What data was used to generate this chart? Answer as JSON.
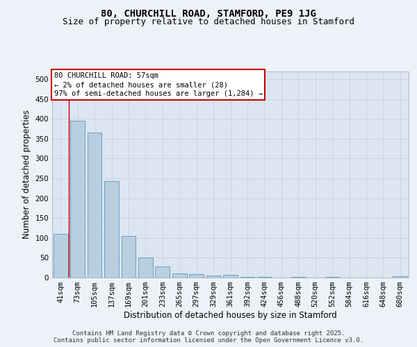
{
  "title_line1": "80, CHURCHILL ROAD, STAMFORD, PE9 1JG",
  "title_line2": "Size of property relative to detached houses in Stamford",
  "xlabel": "Distribution of detached houses by size in Stamford",
  "ylabel": "Number of detached properties",
  "categories": [
    "41sqm",
    "73sqm",
    "105sqm",
    "137sqm",
    "169sqm",
    "201sqm",
    "233sqm",
    "265sqm",
    "297sqm",
    "329sqm",
    "361sqm",
    "392sqm",
    "424sqm",
    "456sqm",
    "488sqm",
    "520sqm",
    "552sqm",
    "584sqm",
    "616sqm",
    "648sqm",
    "680sqm"
  ],
  "values": [
    110,
    395,
    365,
    243,
    105,
    50,
    28,
    10,
    8,
    6,
    7,
    2,
    1,
    0,
    1,
    0,
    2,
    0,
    0,
    0,
    3
  ],
  "bar_color": "#b8cfe0",
  "bar_edge_color": "#6a9fbe",
  "annotation_box_text": "80 CHURCHILL ROAD: 57sqm\n← 2% of detached houses are smaller (28)\n97% of semi-detached houses are larger (1,284) →",
  "annotation_box_color": "#ffffff",
  "annotation_box_edge_color": "#cc0000",
  "vline_color": "#cc0000",
  "vline_x": 0.47,
  "ylim": [
    0,
    520
  ],
  "yticks": [
    0,
    50,
    100,
    150,
    200,
    250,
    300,
    350,
    400,
    450,
    500
  ],
  "grid_color": "#c8d4e8",
  "plot_bg_color": "#dce6f0",
  "fig_bg_color": "#eef2f8",
  "title_fontsize": 10,
  "subtitle_fontsize": 9,
  "axis_label_fontsize": 8.5,
  "tick_fontsize": 7.5,
  "annotation_fontsize": 7.5,
  "footer_fontsize": 6.5,
  "footer_text": "Contains HM Land Registry data © Crown copyright and database right 2025.\nContains public sector information licensed under the Open Government Licence v3.0."
}
